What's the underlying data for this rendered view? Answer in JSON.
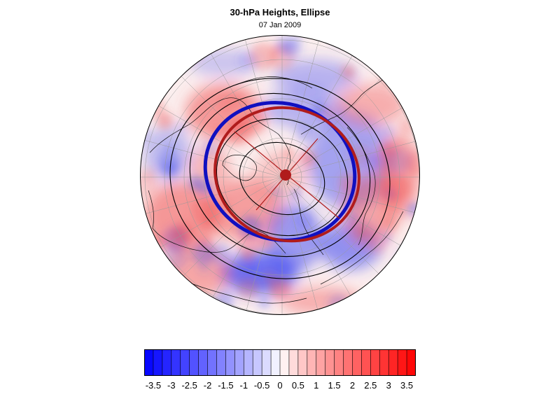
{
  "title": "30-hPa Heights, Ellipse",
  "date": "07 Jan 2009",
  "colorbar": {
    "min": -3.75,
    "max": 3.75,
    "step": 0.25,
    "low_color": "#0000ff",
    "mid_color": "#ffffff",
    "high_color": "#ff0000",
    "tick_labels": [
      "-3.5",
      "-3",
      "-2.5",
      "-2",
      "-1.5",
      "-1",
      "-0.5",
      "0",
      "0.5",
      "1",
      "1.5",
      "2",
      "2.5",
      "3",
      "3.5"
    ]
  },
  "map": {
    "projection": "north polar orthographic",
    "anomaly_colors": {
      "negative": "#3c46f0",
      "positive": "#f05050"
    },
    "ellipse_colors": {
      "analysis": "#b01c1c",
      "climatology": "#1010c0",
      "center": "#b01c1c"
    }
  }
}
